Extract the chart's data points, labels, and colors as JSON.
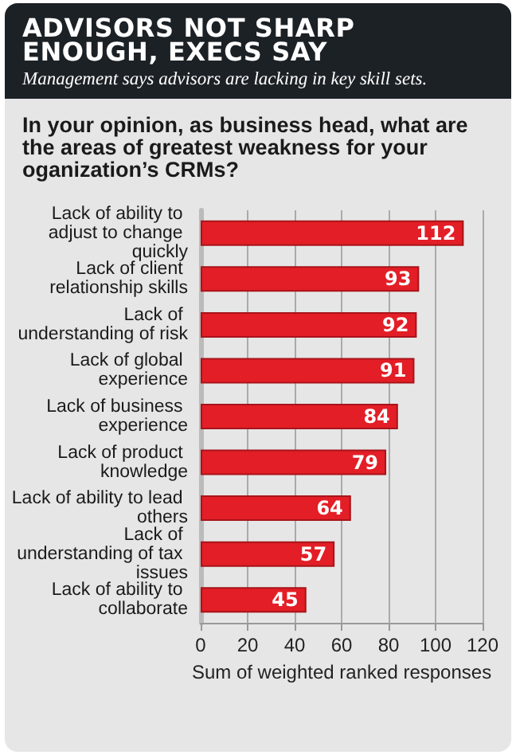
{
  "chart_data": {
    "type": "bar",
    "orientation": "horizontal",
    "title": "ADVISORS NOT SHARP ENOUGH, EXECS SAY",
    "subtitle": "Management says advisors are lacking in key skill sets.",
    "annotations": [
      "In your opinion, as business head, what are the areas of greatest weakness for your oganization’s CRMs?"
    ],
    "categories": [
      "Lack of ability to adjust to change quickly",
      "Lack of client relationship skills",
      "Lack of understanding of risk",
      "Lack of global experience",
      "Lack of business experience",
      "Lack of product knowledge",
      "Lack of ability to lead others",
      "Lack of understanding of tax issues",
      "Lack of ability to collaborate"
    ],
    "values": [
      112,
      93,
      92,
      91,
      84,
      79,
      64,
      57,
      45
    ],
    "color": "#e31e26",
    "xlabel": "Sum of weighted ranked responses",
    "xlim": [
      0,
      120
    ],
    "xticks": [
      0,
      20,
      40,
      60,
      80,
      100,
      120
    ],
    "grid": "x",
    "data_labels": true
  }
}
